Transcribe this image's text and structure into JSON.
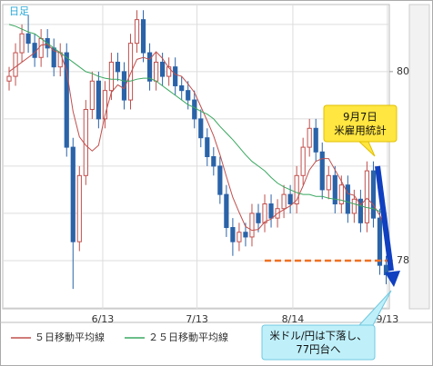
{
  "chart_data": {
    "type": "candlestick",
    "label": "日足",
    "open": [
      79.9,
      79.95,
      80.2,
      80.4,
      80.3,
      80.15,
      80.35,
      80.25,
      80.05,
      80.2,
      79.2,
      78.2,
      78.9,
      79.6,
      79.9,
      79.5,
      79.8,
      80.1,
      80.0,
      79.7,
      80.3,
      80.55,
      80.2,
      79.9,
      80.1,
      79.95,
      80.05,
      79.85,
      79.8,
      79.7,
      79.5,
      79.3,
      79.1,
      79.0,
      78.7,
      78.35,
      78.2,
      78.3,
      78.25,
      78.5,
      78.4,
      78.6,
      78.45,
      78.55,
      78.7,
      78.6,
      78.9,
      79.2,
      79.4,
      79.15,
      78.75,
      78.9,
      78.6,
      78.8,
      78.5,
      78.65,
      78.4,
      78.95,
      78.45,
      77.95
    ],
    "high": [
      80.05,
      80.3,
      80.5,
      80.6,
      80.4,
      80.45,
      80.45,
      80.35,
      80.3,
      80.3,
      79.3,
      79.0,
      79.7,
      80.0,
      80.0,
      79.9,
      80.2,
      80.2,
      80.1,
      80.4,
      80.65,
      80.65,
      80.3,
      80.2,
      80.2,
      80.15,
      80.15,
      79.95,
      79.9,
      79.8,
      79.6,
      79.4,
      79.2,
      79.1,
      78.8,
      78.45,
      78.4,
      78.4,
      78.6,
      78.6,
      78.7,
      78.7,
      78.65,
      78.8,
      78.8,
      79.0,
      79.3,
      79.5,
      79.5,
      79.25,
      79.0,
      79.0,
      78.9,
      78.9,
      78.75,
      78.75,
      79.05,
      79.05,
      78.55,
      78.05
    ],
    "low": [
      79.8,
      79.85,
      80.1,
      80.2,
      80.05,
      80.05,
      80.15,
      79.95,
      79.95,
      79.1,
      77.7,
      78.1,
      78.8,
      79.5,
      79.4,
      79.4,
      79.7,
      79.9,
      79.6,
      79.6,
      80.2,
      80.1,
      79.8,
      79.8,
      79.85,
      79.85,
      79.75,
      79.7,
      79.6,
      79.4,
      79.2,
      79.0,
      78.9,
      78.6,
      78.25,
      78.05,
      78.1,
      78.15,
      78.15,
      78.3,
      78.3,
      78.35,
      78.35,
      78.45,
      78.5,
      78.5,
      78.8,
      79.1,
      79.05,
      78.65,
      78.65,
      78.5,
      78.5,
      78.4,
      78.4,
      78.3,
      78.3,
      78.35,
      77.85,
      77.75
    ],
    "close": [
      79.95,
      80.2,
      80.4,
      80.3,
      80.15,
      80.35,
      80.25,
      80.05,
      80.2,
      79.2,
      78.2,
      78.9,
      79.6,
      79.9,
      79.5,
      79.8,
      80.1,
      80.0,
      79.7,
      80.3,
      80.55,
      80.2,
      79.9,
      80.1,
      79.95,
      80.05,
      79.85,
      79.8,
      79.7,
      79.5,
      79.3,
      79.1,
      79.0,
      78.7,
      78.35,
      78.2,
      78.3,
      78.25,
      78.5,
      78.4,
      78.6,
      78.45,
      78.55,
      78.7,
      78.6,
      78.9,
      79.2,
      79.4,
      79.15,
      78.75,
      78.9,
      78.6,
      78.8,
      78.5,
      78.65,
      78.4,
      78.95,
      78.45,
      77.95,
      77.85
    ],
    "up_color": "#c0504d",
    "down_color": "#2a63a8",
    "series": [
      {
        "name": "５日移動平均線",
        "color": "#c0504d",
        "values": [
          80.0,
          80.05,
          80.1,
          80.15,
          80.2,
          80.28,
          80.29,
          80.22,
          80.2,
          80.01,
          79.58,
          79.31,
          79.22,
          79.16,
          79.22,
          79.54,
          79.78,
          79.86,
          79.82,
          79.98,
          80.13,
          80.15,
          80.13,
          80.21,
          80.14,
          80.04,
          79.97,
          79.95,
          79.87,
          79.78,
          79.63,
          79.48,
          79.32,
          79.12,
          78.89,
          78.67,
          78.51,
          78.36,
          78.32,
          78.33,
          78.41,
          78.44,
          78.5,
          78.54,
          78.58,
          78.64,
          78.79,
          78.96,
          79.05,
          79.08,
          79.08,
          78.96,
          78.84,
          78.71,
          78.69,
          78.59,
          78.66,
          78.59,
          78.48,
          78.32
        ]
      },
      {
        "name": "２５日移動平均線",
        "color": "#3aa860",
        "values": [
          80.5,
          80.48,
          80.45,
          80.42,
          80.4,
          80.35,
          80.3,
          80.25,
          80.2,
          80.15,
          80.1,
          80.05,
          80.0,
          79.98,
          79.95,
          79.93,
          79.92,
          79.92,
          79.9,
          79.9,
          79.92,
          79.93,
          79.93,
          79.9,
          79.85,
          79.8,
          79.75,
          79.7,
          79.65,
          79.62,
          79.58,
          79.55,
          79.5,
          79.42,
          79.35,
          79.28,
          79.2,
          79.12,
          79.05,
          79.0,
          78.95,
          78.88,
          78.82,
          78.78,
          78.75,
          78.72,
          78.7,
          78.7,
          78.68,
          78.68,
          78.66,
          78.65,
          78.64,
          78.62,
          78.6,
          78.58,
          78.56,
          78.55,
          78.52,
          78.48
        ]
      }
    ],
    "xlim": [
      -1,
      59.5
    ],
    "xticks": [
      {
        "value": 14.65,
        "label": "6/13"
      },
      {
        "value": 29.4,
        "label": "7/13"
      },
      {
        "value": 44.4,
        "label": "8/14"
      },
      {
        "value": 59.2,
        "label": "9/13"
      }
    ],
    "ylim": [
      77.49,
      80.71
    ],
    "yticks": [
      78,
      80
    ],
    "ygrid": [
      77.5,
      78,
      78.5,
      79,
      79.5,
      80,
      80.5
    ],
    "hline": {
      "value": 78,
      "from": 40,
      "color": "#f07020"
    },
    "callouts": [
      {
        "lines": [
          "9月7日",
          "米雇用統計"
        ]
      },
      {
        "lines": [
          "米ドル/円は下落し、",
          "77円台へ"
        ]
      }
    ]
  }
}
